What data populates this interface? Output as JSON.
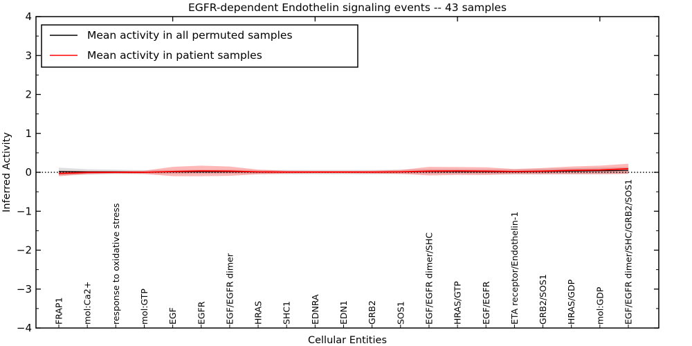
{
  "chart_data": {
    "type": "line",
    "title": "EGFR-dependent Endothelin signaling events -- 43 samples",
    "xlabel": "Cellular Entities",
    "ylabel": "Inferred Activity",
    "ylim": [
      -4,
      4
    ],
    "grid": false,
    "legend_position": "upper left",
    "background_color": "#ffffff",
    "zero_reference_line": {
      "y": 0,
      "style": "dotted",
      "color": "#000000"
    },
    "y_tick_values": [
      4,
      3,
      2,
      1,
      0,
      -1,
      -2,
      -3,
      -4
    ],
    "y_tick_labels": [
      "4",
      "3",
      "2",
      "1",
      "0",
      "−1",
      "−2",
      "−3",
      "−4"
    ],
    "y_minor_tick_values": [
      3.5,
      2.5,
      1.5,
      0.5,
      -0.5,
      -1.5,
      -2.5,
      -3.5
    ],
    "x_top_tick_indices": [
      4,
      9,
      14,
      19
    ],
    "categories": [
      "FRAP1",
      "mol:Ca2+",
      "response to oxidative stress",
      "mol:GTP",
      "EGF",
      "EGFR",
      "EGF/EGFR dimer",
      "HRAS",
      "SHC1",
      "EDNRA",
      "EDN1",
      "GRB2",
      "SOS1",
      "EGF/EGFR dimer/SHC",
      "HRAS/GTP",
      "EGF/EGFR",
      "ETA receptor/Endothelin-1",
      "GRB2/SOS1",
      "HRAS/GDP",
      "mol:GDP",
      "EGF/EGFR dimer/SHC/GRB2/SOS1"
    ],
    "series": [
      {
        "name": "Mean activity in all permuted samples",
        "color": "#000000",
        "line_width": 1.2,
        "values": [
          0.02,
          0.01,
          0.01,
          0.005,
          0.01,
          0.015,
          0.015,
          0.005,
          0.005,
          0.005,
          0.005,
          0.005,
          0.01,
          0.02,
          0.02,
          0.015,
          0.01,
          0.02,
          0.03,
          0.04,
          0.05
        ],
        "band_halfwidth": [
          0.1,
          0.07,
          0.055,
          0.05,
          0.05,
          0.05,
          0.05,
          0.05,
          0.055,
          0.055,
          0.055,
          0.055,
          0.055,
          0.06,
          0.06,
          0.06,
          0.065,
          0.07,
          0.075,
          0.08,
          0.085
        ],
        "band_color": "#000000",
        "band_opacity": 0.13
      },
      {
        "name": "Mean activity in patient samples",
        "color": "#ff0000",
        "line_width": 1.8,
        "values": [
          -0.03,
          -0.005,
          0,
          0,
          0.02,
          0.035,
          0.03,
          0.01,
          0.005,
          0.005,
          0.005,
          0.005,
          0.01,
          0.03,
          0.035,
          0.03,
          0.02,
          0.03,
          0.05,
          0.06,
          0.09
        ],
        "band_halfwidth": [
          0.07,
          0.04,
          0.03,
          0.04,
          0.12,
          0.135,
          0.12,
          0.06,
          0.035,
          0.03,
          0.03,
          0.035,
          0.05,
          0.11,
          0.1,
          0.1,
          0.065,
          0.08,
          0.1,
          0.11,
          0.13
        ],
        "band_color": "#ff0000",
        "band_opacity": 0.28
      }
    ]
  }
}
